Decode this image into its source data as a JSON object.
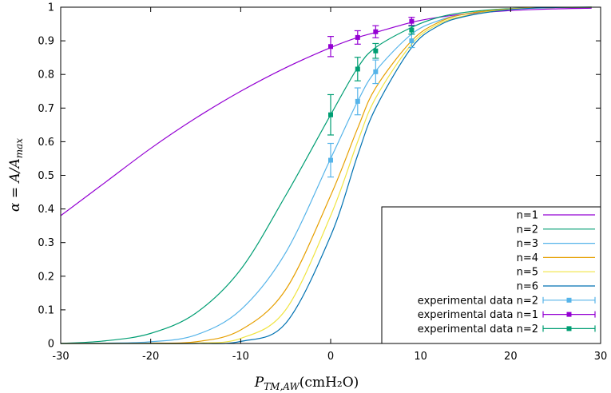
{
  "chart_data": {
    "type": "line",
    "title": "",
    "xlabel": "P_TM,AW (cmH2O)",
    "xlabel_parts": {
      "var": "P",
      "sub": "TM,AW",
      "unit": "(cmH₂O)"
    },
    "ylabel": "α = A/A_max",
    "ylabel_parts": {
      "pre": "α = A/A",
      "sub": "max"
    },
    "xlim": [
      -30,
      30
    ],
    "ylim": [
      0,
      1
    ],
    "x_ticks": [
      -30,
      -20,
      -10,
      0,
      10,
      20,
      30
    ],
    "y_ticks": [
      0,
      0.1,
      0.2,
      0.3,
      0.4,
      0.5,
      0.6,
      0.7,
      0.8,
      0.9,
      1
    ],
    "x_tick_labels": [
      "-30",
      "-20",
      "-10",
      "0",
      "10",
      "20",
      "30"
    ],
    "y_tick_labels": [
      "0",
      "0.1",
      "0.2",
      "0.3",
      "0.4",
      "0.5",
      "0.6",
      "0.7",
      "0.8",
      "0.9",
      "1"
    ],
    "grid": false,
    "legend_position": "bottom-right",
    "curve_x": [
      -30,
      -25,
      -20,
      -15,
      -10,
      -5,
      0,
      3,
      5,
      9,
      12,
      15,
      20,
      25,
      29
    ],
    "series": [
      {
        "name": "n=1",
        "color": "#9400d3",
        "y": [
          0.38,
          0.48,
          0.58,
          0.67,
          0.75,
          0.82,
          0.88,
          0.91,
          0.925,
          0.955,
          0.97,
          0.98,
          0.99,
          0.995,
          0.997
        ]
      },
      {
        "name": "n=2",
        "color": "#009e73",
        "y": [
          0.0,
          0.008,
          0.03,
          0.09,
          0.22,
          0.44,
          0.68,
          0.82,
          0.88,
          0.94,
          0.97,
          0.985,
          0.996,
          0.999,
          1.0
        ]
      },
      {
        "name": "n=3",
        "color": "#56b4e9",
        "y": [
          0.0,
          0.001,
          0.005,
          0.025,
          0.1,
          0.27,
          0.55,
          0.72,
          0.81,
          0.92,
          0.96,
          0.98,
          0.995,
          0.999,
          1.0
        ]
      },
      {
        "name": "n=4",
        "color": "#e69f00",
        "y": [
          0.0,
          0.0,
          0.001,
          0.005,
          0.04,
          0.16,
          0.44,
          0.64,
          0.76,
          0.9,
          0.955,
          0.98,
          0.995,
          0.999,
          1.0
        ]
      },
      {
        "name": "n=5",
        "color": "#f0e442",
        "y": [
          0.0,
          0.0,
          0.0,
          0.001,
          0.015,
          0.1,
          0.38,
          0.6,
          0.73,
          0.89,
          0.95,
          0.975,
          0.994,
          0.999,
          1.0
        ]
      },
      {
        "name": "n=6",
        "color": "#0072b2",
        "y": [
          0.0,
          0.0,
          0.0,
          0.0,
          0.006,
          0.06,
          0.32,
          0.56,
          0.7,
          0.88,
          0.945,
          0.973,
          0.993,
          0.999,
          1.0
        ]
      }
    ],
    "experimental": [
      {
        "name": "experimental data n=2",
        "color": "#56b4e9",
        "points": [
          {
            "x": 0,
            "y": 0.545,
            "err": 0.05
          },
          {
            "x": 3,
            "y": 0.72,
            "err": 0.04
          },
          {
            "x": 5,
            "y": 0.808,
            "err": 0.035
          },
          {
            "x": 9,
            "y": 0.9,
            "err": 0.02
          }
        ]
      },
      {
        "name": "experimental data n=1",
        "color": "#9400d3",
        "points": [
          {
            "x": 0,
            "y": 0.883,
            "err": 0.03
          },
          {
            "x": 3,
            "y": 0.91,
            "err": 0.02
          },
          {
            "x": 5,
            "y": 0.927,
            "err": 0.018
          },
          {
            "x": 9,
            "y": 0.958,
            "err": 0.012
          }
        ]
      },
      {
        "name": "experimental data n=2",
        "color": "#009e73",
        "points": [
          {
            "x": 0,
            "y": 0.68,
            "err": 0.06
          },
          {
            "x": 3,
            "y": 0.816,
            "err": 0.035
          },
          {
            "x": 5,
            "y": 0.87,
            "err": 0.022
          },
          {
            "x": 9,
            "y": 0.932,
            "err": 0.012
          }
        ]
      }
    ]
  }
}
